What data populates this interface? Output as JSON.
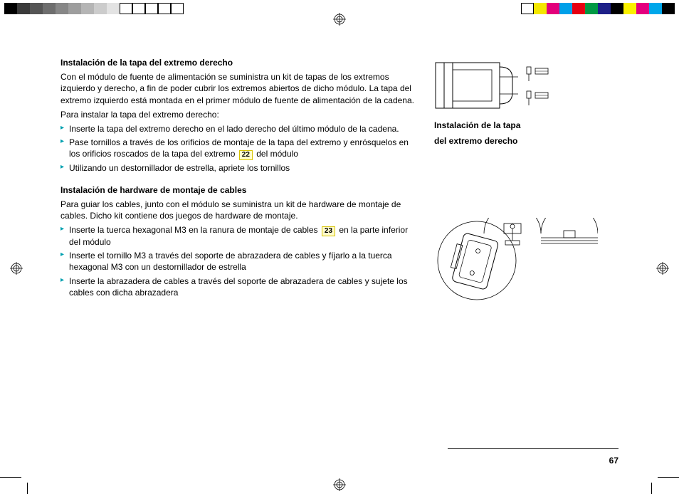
{
  "colorBarLeft": [
    "#000000",
    "#3a3a3a",
    "#555555",
    "#6e6e6e",
    "#878787",
    "#9e9e9e",
    "#b5b5b5",
    "#cccccc",
    "#e3e3e3",
    "#ffffff",
    "#ffffff",
    "#ffffff",
    "#ffffff",
    "#ffffff"
  ],
  "colorBarRight": [
    "#ffffff",
    "#f4e700",
    "#e3007b",
    "#00a0e9",
    "#e60012",
    "#009944",
    "#1d2088",
    "#000000",
    "#faf100",
    "#e4007f",
    "#00a7ea",
    "#000000"
  ],
  "section1": {
    "heading": "Instalación de la tapa del extremo derecho",
    "para1": "Con el módulo de fuente de alimentación se suministra un kit de tapas de los extremos izquierdo y derecho, a fin de poder cubrir los extremos abiertos de dicho módulo. La tapa del extremo izquierdo está montada en el primer módulo de fuente de alimentación de la cadena.",
    "para2": "Para instalar la tapa del extremo derecho:",
    "items": [
      {
        "pre": "Inserte la tapa del extremo derecho en el lado derecho del último módulo de la cadena.",
        "callout": "",
        "post": ""
      },
      {
        "pre": "Pase tornillos a través de los orificios de montaje de la tapa del extremo y enrósquelos en los orificios roscados de la tapa del extremo ",
        "callout": "22",
        "post": " del módulo"
      },
      {
        "pre": "Utilizando un destornillador de estrella, apriete los tornillos",
        "callout": "",
        "post": ""
      }
    ]
  },
  "section2": {
    "heading": "Instalación de hardware de montaje de cables",
    "para1": "Para guiar los cables, junto con el módulo se suministra un kit de hardware de montaje de cables. Dicho kit contiene dos juegos de hardware de montaje.",
    "items": [
      {
        "pre": "Inserte la tuerca hexagonal M3 en la ranura de montaje de cables ",
        "callout": "23",
        "post": " en la parte inferior del módulo"
      },
      {
        "pre": "Inserte el tornillo M3 a través del soporte de abrazadera de cables y fíjarlo a la tuerca hexagonal M3 con un destornillador de estrella",
        "callout": "",
        "post": ""
      },
      {
        "pre": "Inserte la abrazadera de cables a través del soporte de abrazadera de cables y sujete los cables con dicha abrazadera",
        "callout": "",
        "post": ""
      }
    ]
  },
  "figure1": {
    "caption1": "Instalación de la tapa",
    "caption2": "del extremo derecho"
  },
  "pageNumber": "67"
}
